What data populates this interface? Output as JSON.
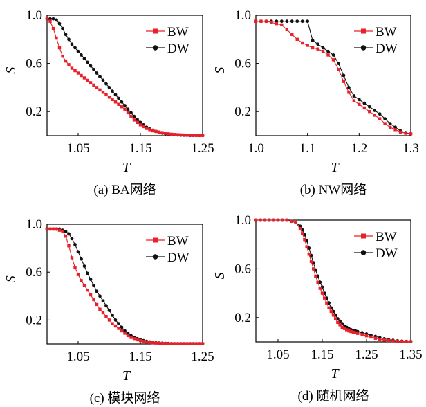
{
  "figure": {
    "y_axis_label": "S",
    "x_axis_label": "T",
    "series_names": [
      "BW",
      "DW"
    ],
    "series_colors": [
      "#e8202a",
      "#111111"
    ]
  },
  "chart_data": [
    {
      "type": "line",
      "caption": "(a)  BA网络",
      "xlabel": "T",
      "ylabel": "S",
      "xlim": [
        1.0,
        1.25
      ],
      "ylim": [
        0.0,
        1.0
      ],
      "xticks": [
        "1.05",
        "1.15",
        "1.25"
      ],
      "xtick_values": [
        1.05,
        1.15,
        1.25
      ],
      "yticks": [
        "0.2",
        "0.6",
        "1.0"
      ],
      "ytick_values": [
        0.2,
        0.6,
        1.0
      ],
      "legend": "top-right",
      "series": [
        {
          "name": "BW",
          "x": [
            1.0,
            1.005,
            1.01,
            1.015,
            1.02,
            1.025,
            1.03,
            1.035,
            1.04,
            1.045,
            1.05,
            1.055,
            1.06,
            1.065,
            1.07,
            1.075,
            1.08,
            1.085,
            1.09,
            1.095,
            1.1,
            1.105,
            1.11,
            1.115,
            1.12,
            1.125,
            1.13,
            1.135,
            1.14,
            1.145,
            1.15,
            1.155,
            1.16,
            1.165,
            1.17,
            1.175,
            1.18,
            1.185,
            1.19,
            1.195,
            1.2,
            1.205,
            1.21,
            1.215,
            1.22,
            1.225,
            1.23,
            1.235,
            1.24,
            1.245,
            1.25
          ],
          "y": [
            0.97,
            0.95,
            0.89,
            0.81,
            0.73,
            0.66,
            0.62,
            0.59,
            0.56,
            0.54,
            0.52,
            0.5,
            0.48,
            0.46,
            0.44,
            0.42,
            0.4,
            0.38,
            0.36,
            0.34,
            0.32,
            0.3,
            0.28,
            0.26,
            0.24,
            0.22,
            0.19,
            0.16,
            0.13,
            0.11,
            0.09,
            0.075,
            0.06,
            0.05,
            0.04,
            0.035,
            0.03,
            0.025,
            0.02,
            0.015,
            0.012,
            0.01,
            0.008,
            0.006,
            0.005,
            0.004,
            0.003,
            0.002,
            0.002,
            0.002,
            0.002
          ]
        },
        {
          "name": "DW",
          "x": [
            1.0,
            1.005,
            1.01,
            1.015,
            1.02,
            1.025,
            1.03,
            1.035,
            1.04,
            1.045,
            1.05,
            1.055,
            1.06,
            1.065,
            1.07,
            1.075,
            1.08,
            1.085,
            1.09,
            1.095,
            1.1,
            1.105,
            1.11,
            1.115,
            1.12,
            1.125,
            1.13,
            1.135,
            1.14,
            1.145,
            1.15,
            1.155,
            1.16,
            1.165,
            1.17,
            1.175,
            1.18,
            1.185,
            1.19,
            1.195,
            1.2,
            1.205,
            1.21,
            1.215,
            1.22,
            1.225,
            1.23,
            1.235,
            1.24,
            1.245,
            1.25
          ],
          "y": [
            0.97,
            0.97,
            0.97,
            0.96,
            0.93,
            0.89,
            0.84,
            0.8,
            0.76,
            0.73,
            0.7,
            0.67,
            0.64,
            0.61,
            0.58,
            0.55,
            0.52,
            0.49,
            0.46,
            0.43,
            0.4,
            0.37,
            0.34,
            0.31,
            0.28,
            0.25,
            0.22,
            0.19,
            0.16,
            0.135,
            0.11,
            0.09,
            0.07,
            0.055,
            0.045,
            0.035,
            0.028,
            0.022,
            0.017,
            0.013,
            0.01,
            0.008,
            0.006,
            0.005,
            0.004,
            0.003,
            0.002,
            0.002,
            0.002,
            0.002,
            0.002
          ]
        }
      ]
    },
    {
      "type": "line",
      "caption": "(b)  NW网络",
      "xlabel": "T",
      "ylabel": "S",
      "xlim": [
        1.0,
        1.3
      ],
      "ylim": [
        0.0,
        1.0
      ],
      "xticks": [
        "1.0",
        "1.1",
        "1.2",
        "1.3"
      ],
      "xtick_values": [
        1.0,
        1.1,
        1.2,
        1.3
      ],
      "yticks": [
        "0.2",
        "0.6",
        "1.0"
      ],
      "ytick_values": [
        0.2,
        0.6,
        1.0
      ],
      "legend": "top-right",
      "series": [
        {
          "name": "BW",
          "x": [
            1.0,
            1.01,
            1.02,
            1.03,
            1.04,
            1.05,
            1.06,
            1.07,
            1.08,
            1.09,
            1.1,
            1.11,
            1.12,
            1.13,
            1.14,
            1.15,
            1.16,
            1.17,
            1.18,
            1.19,
            1.2,
            1.21,
            1.22,
            1.23,
            1.24,
            1.25,
            1.26,
            1.27,
            1.28,
            1.29,
            1.3
          ],
          "y": [
            0.95,
            0.95,
            0.95,
            0.94,
            0.93,
            0.92,
            0.88,
            0.84,
            0.8,
            0.77,
            0.75,
            0.73,
            0.72,
            0.7,
            0.67,
            0.63,
            0.55,
            0.45,
            0.36,
            0.29,
            0.26,
            0.23,
            0.2,
            0.17,
            0.14,
            0.1,
            0.07,
            0.05,
            0.03,
            0.02,
            0.015
          ]
        },
        {
          "name": "DW",
          "x": [
            1.0,
            1.01,
            1.02,
            1.03,
            1.04,
            1.05,
            1.06,
            1.07,
            1.08,
            1.09,
            1.1,
            1.11,
            1.12,
            1.13,
            1.14,
            1.15,
            1.16,
            1.17,
            1.18,
            1.19,
            1.2,
            1.21,
            1.22,
            1.23,
            1.24,
            1.25,
            1.26,
            1.27,
            1.28,
            1.29,
            1.3
          ],
          "y": [
            0.95,
            0.95,
            0.95,
            0.95,
            0.95,
            0.95,
            0.95,
            0.95,
            0.95,
            0.95,
            0.95,
            0.79,
            0.76,
            0.73,
            0.7,
            0.67,
            0.6,
            0.5,
            0.4,
            0.33,
            0.3,
            0.27,
            0.24,
            0.21,
            0.18,
            0.14,
            0.1,
            0.07,
            0.04,
            0.025,
            0.015
          ]
        }
      ]
    },
    {
      "type": "line",
      "caption": "(c)  模块网络",
      "xlabel": "T",
      "ylabel": "S",
      "xlim": [
        1.0,
        1.25
      ],
      "ylim": [
        0.0,
        1.0
      ],
      "xticks": [
        "1.05",
        "1.15",
        "1.25"
      ],
      "xtick_values": [
        1.05,
        1.15,
        1.25
      ],
      "yticks": [
        "0.2",
        "0.6",
        "1.0"
      ],
      "ytick_values": [
        0.2,
        0.6,
        1.0
      ],
      "legend": "top-right",
      "series": [
        {
          "name": "BW",
          "x": [
            1.0,
            1.005,
            1.01,
            1.015,
            1.02,
            1.025,
            1.03,
            1.035,
            1.04,
            1.045,
            1.05,
            1.055,
            1.06,
            1.065,
            1.07,
            1.075,
            1.08,
            1.085,
            1.09,
            1.095,
            1.1,
            1.105,
            1.11,
            1.115,
            1.12,
            1.125,
            1.13,
            1.135,
            1.14,
            1.145,
            1.15,
            1.155,
            1.16,
            1.165,
            1.17,
            1.175,
            1.18,
            1.185,
            1.19,
            1.195,
            1.2,
            1.205,
            1.21,
            1.215,
            1.22,
            1.225,
            1.23,
            1.235,
            1.24,
            1.245,
            1.25
          ],
          "y": [
            0.96,
            0.96,
            0.96,
            0.96,
            0.95,
            0.94,
            0.9,
            0.82,
            0.72,
            0.64,
            0.58,
            0.53,
            0.49,
            0.45,
            0.41,
            0.37,
            0.33,
            0.29,
            0.26,
            0.23,
            0.2,
            0.17,
            0.15,
            0.13,
            0.11,
            0.09,
            0.07,
            0.055,
            0.045,
            0.035,
            0.028,
            0.022,
            0.017,
            0.013,
            0.01,
            0.008,
            0.006,
            0.005,
            0.004,
            0.003,
            0.002,
            0.002,
            0.002,
            0.002,
            0.002,
            0.002,
            0.002,
            0.002,
            0.002,
            0.002,
            0.002
          ]
        },
        {
          "name": "DW",
          "x": [
            1.0,
            1.005,
            1.01,
            1.015,
            1.02,
            1.025,
            1.03,
            1.035,
            1.04,
            1.045,
            1.05,
            1.055,
            1.06,
            1.065,
            1.07,
            1.075,
            1.08,
            1.085,
            1.09,
            1.095,
            1.1,
            1.105,
            1.11,
            1.115,
            1.12,
            1.125,
            1.13,
            1.135,
            1.14,
            1.145,
            1.15,
            1.155,
            1.16,
            1.165,
            1.17,
            1.175,
            1.18,
            1.185,
            1.19,
            1.195,
            1.2,
            1.205,
            1.21,
            1.215,
            1.22,
            1.225,
            1.23,
            1.235,
            1.24,
            1.245,
            1.25
          ],
          "y": [
            0.96,
            0.96,
            0.96,
            0.96,
            0.96,
            0.95,
            0.94,
            0.92,
            0.88,
            0.83,
            0.77,
            0.71,
            0.65,
            0.59,
            0.54,
            0.49,
            0.44,
            0.4,
            0.36,
            0.32,
            0.28,
            0.24,
            0.2,
            0.17,
            0.14,
            0.11,
            0.09,
            0.07,
            0.055,
            0.045,
            0.035,
            0.028,
            0.022,
            0.017,
            0.013,
            0.01,
            0.008,
            0.006,
            0.005,
            0.004,
            0.003,
            0.002,
            0.002,
            0.002,
            0.002,
            0.002,
            0.002,
            0.002,
            0.002,
            0.002,
            0.002
          ]
        }
      ]
    },
    {
      "type": "line",
      "caption": "(d)  随机网络",
      "xlabel": "T",
      "ylabel": "S",
      "xlim": [
        1.0,
        1.35
      ],
      "ylim": [
        0.0,
        1.0
      ],
      "xticks": [
        "1.05",
        "1.15",
        "1.25",
        "1.35"
      ],
      "xtick_values": [
        1.05,
        1.15,
        1.25,
        1.35
      ],
      "yticks": [
        "0.2",
        "0.6",
        "1.0"
      ],
      "ytick_values": [
        0.2,
        0.6,
        1.0
      ],
      "legend": "top-right",
      "series": [
        {
          "name": "BW",
          "x": [
            1.0,
            1.01,
            1.02,
            1.03,
            1.04,
            1.05,
            1.06,
            1.07,
            1.08,
            1.09,
            1.1,
            1.105,
            1.11,
            1.115,
            1.12,
            1.125,
            1.13,
            1.135,
            1.14,
            1.145,
            1.15,
            1.155,
            1.16,
            1.165,
            1.17,
            1.175,
            1.18,
            1.185,
            1.19,
            1.195,
            1.2,
            1.205,
            1.21,
            1.215,
            1.22,
            1.225,
            1.23,
            1.24,
            1.25,
            1.26,
            1.27,
            1.28,
            1.29,
            1.3,
            1.31,
            1.32,
            1.33,
            1.34,
            1.35
          ],
          "y": [
            1.0,
            1.0,
            1.0,
            1.0,
            1.0,
            1.0,
            1.0,
            1.0,
            0.99,
            0.98,
            0.93,
            0.89,
            0.84,
            0.78,
            0.72,
            0.66,
            0.6,
            0.54,
            0.49,
            0.44,
            0.4,
            0.36,
            0.32,
            0.28,
            0.25,
            0.22,
            0.19,
            0.16,
            0.14,
            0.12,
            0.11,
            0.1,
            0.09,
            0.085,
            0.08,
            0.075,
            0.07,
            0.06,
            0.05,
            0.04,
            0.03,
            0.022,
            0.016,
            0.012,
            0.008,
            0.006,
            0.004,
            0.003,
            0.002
          ]
        },
        {
          "name": "DW",
          "x": [
            1.0,
            1.01,
            1.02,
            1.03,
            1.04,
            1.05,
            1.06,
            1.07,
            1.08,
            1.09,
            1.1,
            1.105,
            1.11,
            1.115,
            1.12,
            1.125,
            1.13,
            1.135,
            1.14,
            1.145,
            1.15,
            1.155,
            1.16,
            1.165,
            1.17,
            1.175,
            1.18,
            1.185,
            1.19,
            1.195,
            1.2,
            1.205,
            1.21,
            1.215,
            1.22,
            1.225,
            1.23,
            1.24,
            1.25,
            1.26,
            1.27,
            1.28,
            1.29,
            1.3,
            1.31,
            1.32,
            1.33,
            1.34,
            1.35
          ],
          "y": [
            1.0,
            1.0,
            1.0,
            1.0,
            1.0,
            1.0,
            1.0,
            1.0,
            0.99,
            0.98,
            0.95,
            0.92,
            0.88,
            0.83,
            0.77,
            0.71,
            0.65,
            0.59,
            0.54,
            0.49,
            0.45,
            0.4,
            0.36,
            0.32,
            0.28,
            0.25,
            0.22,
            0.19,
            0.17,
            0.15,
            0.13,
            0.12,
            0.11,
            0.1,
            0.095,
            0.09,
            0.085,
            0.075,
            0.065,
            0.055,
            0.045,
            0.035,
            0.026,
            0.019,
            0.013,
            0.009,
            0.006,
            0.004,
            0.003
          ]
        }
      ]
    }
  ]
}
